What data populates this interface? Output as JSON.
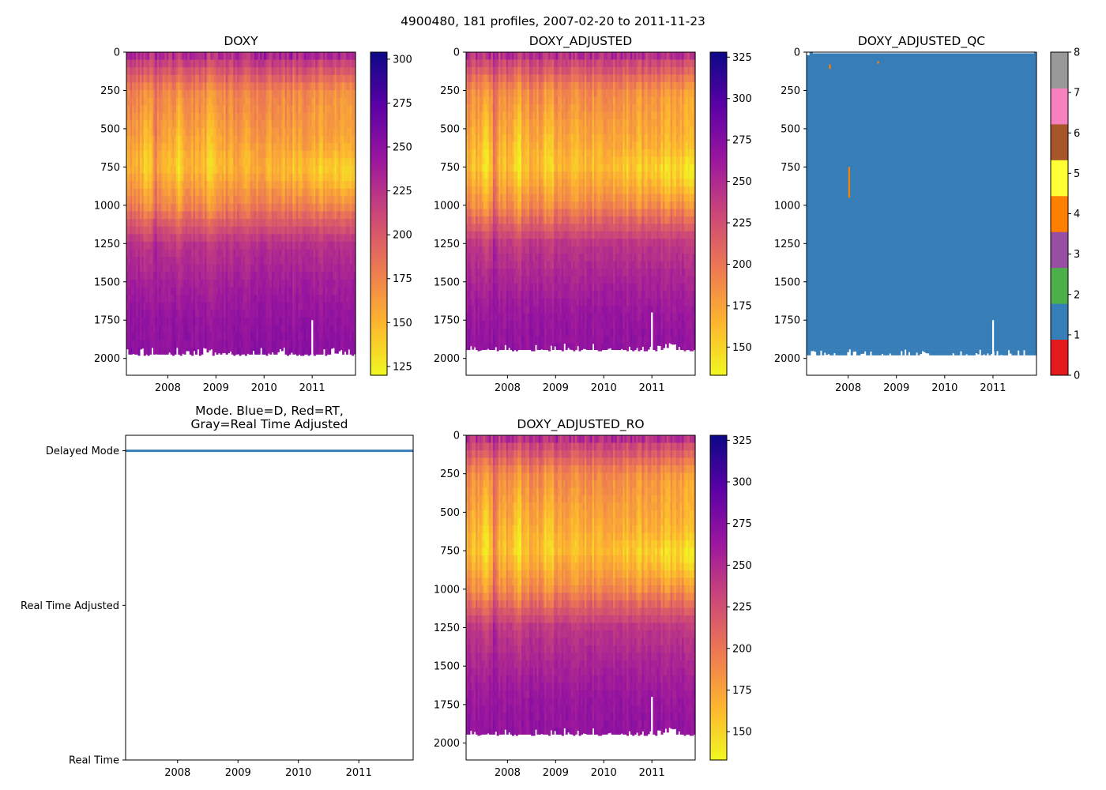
{
  "figure": {
    "suptitle": "4900480, 181 profiles, 2007-02-20 to 2011-11-23",
    "float_id": "4900480",
    "n_profiles": 181,
    "date_start": "2007-02-20",
    "date_end": "2011-11-23"
  },
  "colors": {
    "background": "#ffffff",
    "mode_delayed": "#3a7dbb",
    "mode_realtime": "#e41a1c",
    "mode_rt_adjusted": "#999999",
    "plasma": [
      "#0d0887",
      "#5c01a6",
      "#9c179e",
      "#cc4778",
      "#ed7953",
      "#fdb42f",
      "#f0f921"
    ],
    "qc_palette": [
      "#e41a1c",
      "#377eb8",
      "#4daf4a",
      "#984ea3",
      "#ff7f00",
      "#ffff33",
      "#a65628",
      "#f781bf",
      "#999999"
    ]
  },
  "chart_data": [
    {
      "id": "doxy",
      "type": "heatmap",
      "title": "DOXY",
      "xlabel": "",
      "ylabel": "",
      "x_range": [
        2007.14,
        2011.9
      ],
      "xticks": [
        2008,
        2009,
        2010,
        2011
      ],
      "xtick_labels": [
        "2008",
        "2009",
        "2010",
        "2011"
      ],
      "y_range": [
        2110,
        0
      ],
      "yticks": [
        0,
        250,
        500,
        750,
        1000,
        1250,
        1500,
        1750,
        2000
      ],
      "ytick_labels": [
        "0",
        "250",
        "500",
        "750",
        "1000",
        "1250",
        "1500",
        "1750",
        "2000"
      ],
      "colorbar": {
        "cmap": "plasma_r",
        "range": [
          120,
          304
        ],
        "ticks": [
          125,
          150,
          175,
          200,
          225,
          250,
          275,
          300
        ],
        "tick_labels": [
          "125",
          "150",
          "175",
          "200",
          "225",
          "250",
          "275",
          "300"
        ]
      },
      "max_depth_m": 1980,
      "gap": {
        "year": 2011.0,
        "from_depth_m": 1750
      },
      "profile_values": {
        "depth_m": [
          0,
          250,
          500,
          750,
          1000,
          1250,
          1500,
          1750,
          1980
        ],
        "typical_value": [
          232,
          178,
          165,
          152,
          178,
          226,
          238,
          247,
          250
        ]
      }
    },
    {
      "id": "doxy_adjusted",
      "type": "heatmap",
      "title": "DOXY_ADJUSTED",
      "xlabel": "",
      "ylabel": "",
      "x_range": [
        2007.14,
        2011.9
      ],
      "xticks": [
        2008,
        2009,
        2010,
        2011
      ],
      "xtick_labels": [
        "2008",
        "2009",
        "2010",
        "2011"
      ],
      "y_range": [
        2110,
        0
      ],
      "yticks": [
        0,
        250,
        500,
        750,
        1000,
        1250,
        1500,
        1750,
        2000
      ],
      "ytick_labels": [
        "0",
        "250",
        "500",
        "750",
        "1000",
        "1250",
        "1500",
        "1750",
        "2000"
      ],
      "colorbar": {
        "cmap": "plasma_r",
        "range": [
          133,
          328
        ],
        "ticks": [
          150,
          175,
          200,
          225,
          250,
          275,
          300,
          325
        ],
        "tick_labels": [
          "150",
          "175",
          "200",
          "225",
          "250",
          "275",
          "300",
          "325"
        ]
      },
      "max_depth_m": 1950,
      "gap": {
        "year": 2011.0,
        "from_depth_m": 1700
      },
      "profile_values": {
        "depth_m": [
          0,
          250,
          500,
          750,
          1000,
          1250,
          1500,
          1750,
          1950
        ],
        "typical_value": [
          246,
          190,
          175,
          162,
          190,
          242,
          255,
          265,
          268
        ]
      }
    },
    {
      "id": "doxy_adjusted_qc",
      "type": "heatmap",
      "title": "DOXY_ADJUSTED_QC",
      "xlabel": "",
      "ylabel": "",
      "x_range": [
        2007.14,
        2011.9
      ],
      "xticks": [
        2008,
        2009,
        2010,
        2011
      ],
      "xtick_labels": [
        "2008",
        "2009",
        "2010",
        "2011"
      ],
      "y_range": [
        2110,
        0
      ],
      "yticks": [
        0,
        250,
        500,
        750,
        1000,
        1250,
        1500,
        1750,
        2000
      ],
      "ytick_labels": [
        "0",
        "250",
        "500",
        "750",
        "1000",
        "1250",
        "1500",
        "1750",
        "2000"
      ],
      "colorbar": {
        "cmap": "qc_categorical",
        "range": [
          0,
          8
        ],
        "ticks": [
          0,
          1,
          2,
          3,
          4,
          5,
          6,
          7,
          8
        ],
        "tick_labels": [
          "0",
          "1",
          "2",
          "3",
          "4",
          "5",
          "6",
          "7",
          "8"
        ]
      },
      "dominant_flag": 1,
      "max_depth_m": 1980,
      "gap": {
        "year": 2011.0,
        "from_depth_m": 1750
      },
      "flag_4_marks": [
        {
          "year": 2008.02,
          "depth_from_m": 750,
          "depth_to_m": 950
        },
        {
          "year": 2007.62,
          "depth_from_m": 80,
          "depth_to_m": 110
        },
        {
          "year": 2008.62,
          "depth_from_m": 60,
          "depth_to_m": 75
        }
      ]
    },
    {
      "id": "mode",
      "type": "line",
      "title": "Mode. Blue=D, Red=RT,\nGray=Real Time Adjusted",
      "title_lines": [
        "Mode. Blue=D, Red=RT,",
        "Gray=Real Time Adjusted"
      ],
      "xlabel": "",
      "ylabel": "",
      "x_range": [
        2007.14,
        2011.9
      ],
      "xticks": [
        2008,
        2009,
        2010,
        2011
      ],
      "xtick_labels": [
        "2008",
        "2009",
        "2010",
        "2011"
      ],
      "y_categories": [
        "Real Time",
        "Real Time Adjusted",
        "Delayed Mode"
      ],
      "y_range": [
        0,
        2.1
      ],
      "series": [
        {
          "name": "Delayed Mode",
          "mode": "D",
          "y": 2,
          "x_from": 2007.14,
          "x_to": 2011.9,
          "profiles": 181
        }
      ]
    },
    {
      "id": "doxy_adjusted_ro",
      "type": "heatmap",
      "title": "DOXY_ADJUSTED_RO",
      "xlabel": "",
      "ylabel": "",
      "x_range": [
        2007.14,
        2011.9
      ],
      "xticks": [
        2008,
        2009,
        2010,
        2011
      ],
      "xtick_labels": [
        "2008",
        "2009",
        "2010",
        "2011"
      ],
      "y_range": [
        2110,
        0
      ],
      "yticks": [
        0,
        250,
        500,
        750,
        1000,
        1250,
        1500,
        1750,
        2000
      ],
      "ytick_labels": [
        "0",
        "250",
        "500",
        "750",
        "1000",
        "1250",
        "1500",
        "1750",
        "2000"
      ],
      "colorbar": {
        "cmap": "plasma_r",
        "range": [
          133,
          328
        ],
        "ticks": [
          150,
          175,
          200,
          225,
          250,
          275,
          300,
          325
        ],
        "tick_labels": [
          "150",
          "175",
          "200",
          "225",
          "250",
          "275",
          "300",
          "325"
        ]
      },
      "max_depth_m": 1950,
      "gap": {
        "year": 2011.0,
        "from_depth_m": 1700
      },
      "profile_values": {
        "depth_m": [
          0,
          250,
          500,
          750,
          1000,
          1250,
          1500,
          1750,
          1950
        ],
        "typical_value": [
          246,
          190,
          175,
          162,
          190,
          242,
          255,
          265,
          268
        ]
      }
    }
  ]
}
